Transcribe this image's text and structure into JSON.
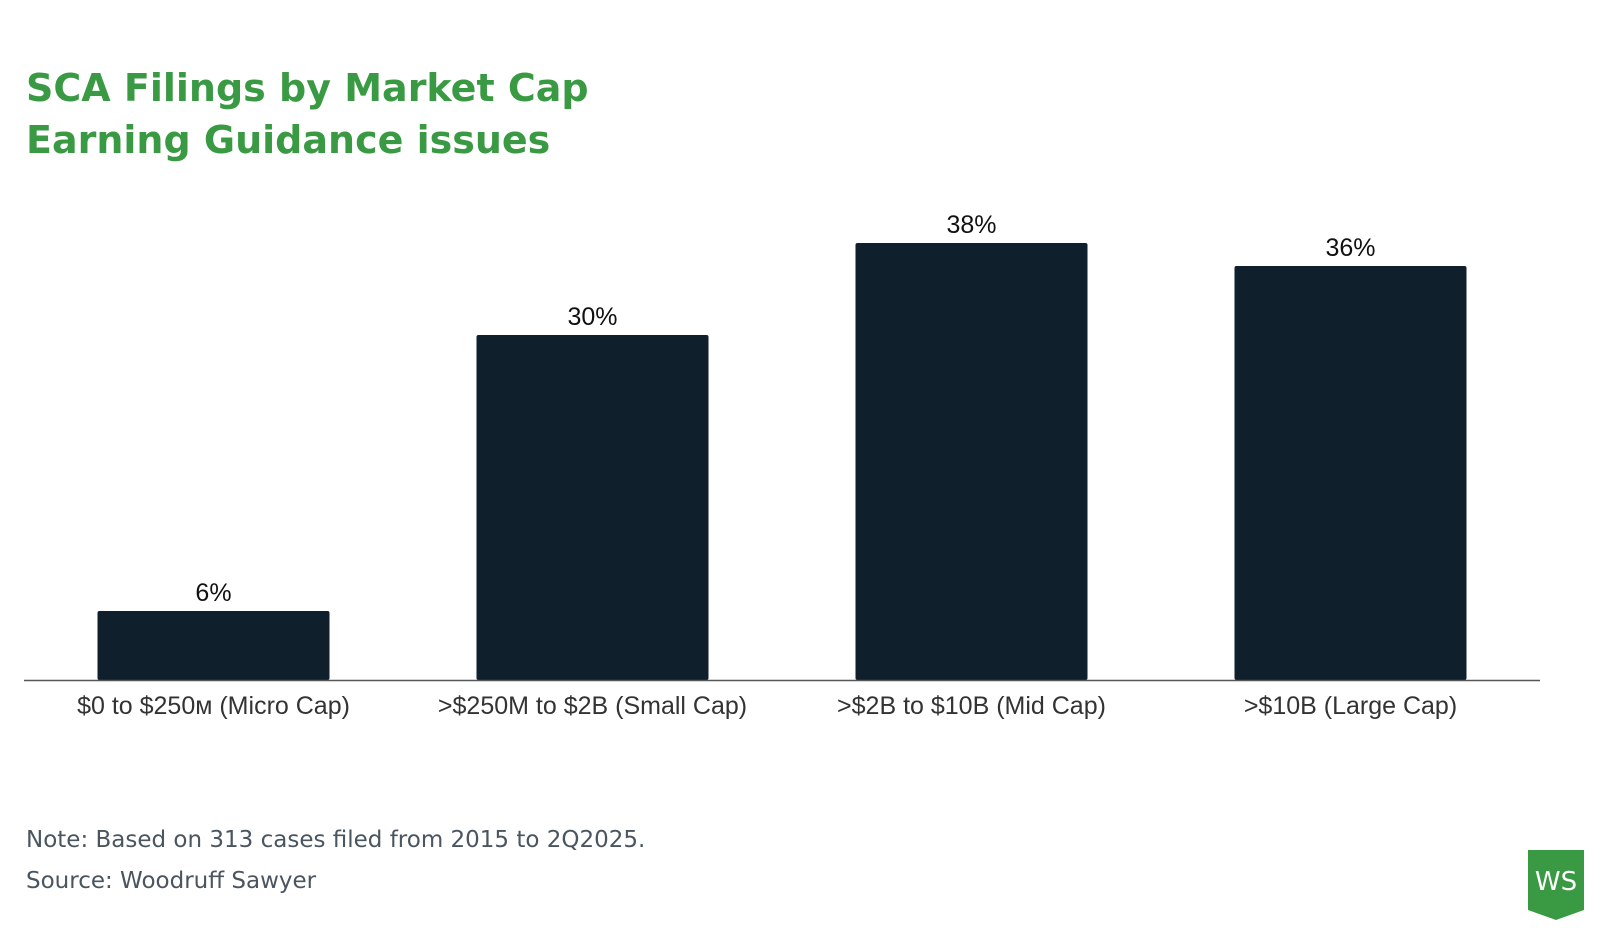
{
  "title": {
    "line1": "SCA Filings by Market Cap",
    "line2": "Earning Guidance issues"
  },
  "chart_data": {
    "type": "bar",
    "categories": [
      "$0 to $250м (Micro Cap)",
      ">$250M to $2B (Small Cap)",
      ">$2B to $10B (Mid Cap)",
      ">$10B (Large Cap)"
    ],
    "values": [
      6,
      30,
      38,
      36
    ],
    "value_labels": [
      "6%",
      "30%",
      "38%",
      "36%"
    ],
    "unit": "%",
    "ylim": [
      0,
      40
    ],
    "grid": false,
    "xlabel": "",
    "ylabel": "",
    "bar_color": "#0f1f2c",
    "axis_color": "#555555"
  },
  "footer": {
    "note": "Note: Based on 313 cases filed from 2015 to 2Q2025.",
    "source": "Source: Woodruff Sawyer"
  },
  "logo": {
    "text": "WS",
    "color": "#3a9a44"
  }
}
